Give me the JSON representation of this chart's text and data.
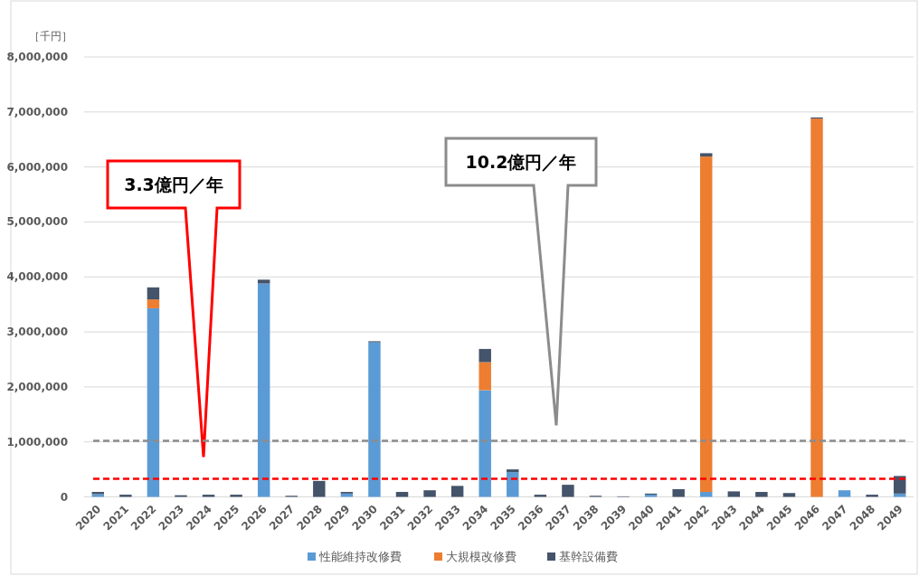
{
  "chart_data": {
    "type": "bar",
    "stacked": true,
    "ylabel": "［千円］",
    "categories": [
      "2020",
      "2021",
      "2022",
      "2023",
      "2024",
      "2025",
      "2026",
      "2027",
      "2028",
      "2029",
      "2030",
      "2031",
      "2032",
      "2033",
      "2034",
      "2035",
      "2036",
      "2037",
      "2038",
      "2039",
      "2040",
      "2041",
      "2042",
      "2043",
      "2044",
      "2045",
      "2046",
      "2047",
      "2048",
      "2049"
    ],
    "series": [
      {
        "name": "性能維持改修費",
        "color": "#5b9bd5",
        "values": [
          50000,
          0,
          3430000,
          0,
          0,
          0,
          3880000,
          0,
          0,
          60000,
          2810000,
          0,
          0,
          0,
          1940000,
          450000,
          0,
          0,
          0,
          0,
          40000,
          0,
          90000,
          0,
          0,
          0,
          0,
          120000,
          0,
          60000
        ]
      },
      {
        "name": "大規模改修費",
        "color": "#ed7d31",
        "values": [
          0,
          0,
          160000,
          0,
          0,
          0,
          0,
          0,
          0,
          0,
          0,
          0,
          0,
          0,
          510000,
          0,
          0,
          0,
          0,
          0,
          0,
          0,
          6100000,
          0,
          0,
          0,
          6880000,
          0,
          0,
          0
        ]
      },
      {
        "name": "基幹設備費",
        "color": "#44546a",
        "values": [
          40000,
          40000,
          220000,
          30000,
          40000,
          40000,
          70000,
          20000,
          290000,
          30000,
          20000,
          90000,
          120000,
          200000,
          240000,
          50000,
          40000,
          220000,
          20000,
          10000,
          20000,
          140000,
          60000,
          100000,
          90000,
          70000,
          20000,
          0,
          40000,
          320000
        ]
      }
    ],
    "ylim": [
      0,
      8000000
    ],
    "yticks": [
      0,
      {
        "value": 1000000,
        "label": "1,000,000"
      },
      {
        "value": 2000000,
        "label": "2,000,000"
      },
      {
        "value": 3000000,
        "label": "3,000,000"
      },
      {
        "value": 4000000,
        "label": "4,000,000"
      },
      {
        "value": 5000000,
        "label": "5,000,000"
      },
      {
        "value": 6000000,
        "label": "6,000,000"
      },
      {
        "value": 7000000,
        "label": "7,000,000"
      },
      {
        "value": 8000000,
        "label": "8,000,000"
      }
    ],
    "ref_lines": [
      {
        "axis": "y",
        "value": 330000,
        "color": "#ff0000",
        "line_style": "dashed"
      },
      {
        "axis": "y",
        "value": 1020000,
        "color": "#8c8c8c",
        "line_style": "dashed"
      }
    ],
    "annotations": [
      "3.3億円／年",
      "10.2億円／年"
    ],
    "grid": "y",
    "legend": "bottom"
  }
}
